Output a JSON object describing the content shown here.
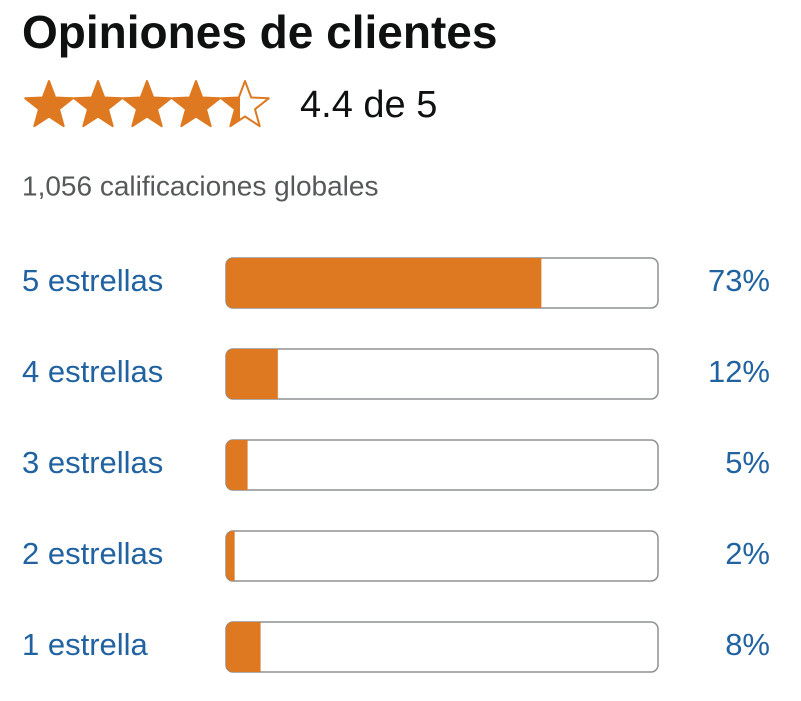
{
  "header": {
    "title": "Opiniones de clientes",
    "rating": 4.4,
    "rating_label": "4.4 de 5",
    "total_label": "1,056 calificaciones globales"
  },
  "breakdown": {
    "rows": [
      {
        "label": "5 estrellas",
        "value": 73,
        "value_label": "73%"
      },
      {
        "label": "4 estrellas",
        "value": 12,
        "value_label": "12%"
      },
      {
        "label": "3 estrellas",
        "value": 5,
        "value_label": "5%"
      },
      {
        "label": "2 estrellas",
        "value": 2,
        "value_label": "2%"
      },
      {
        "label": "1 estrella",
        "value": 8,
        "value_label": "8%"
      }
    ]
  }
}
